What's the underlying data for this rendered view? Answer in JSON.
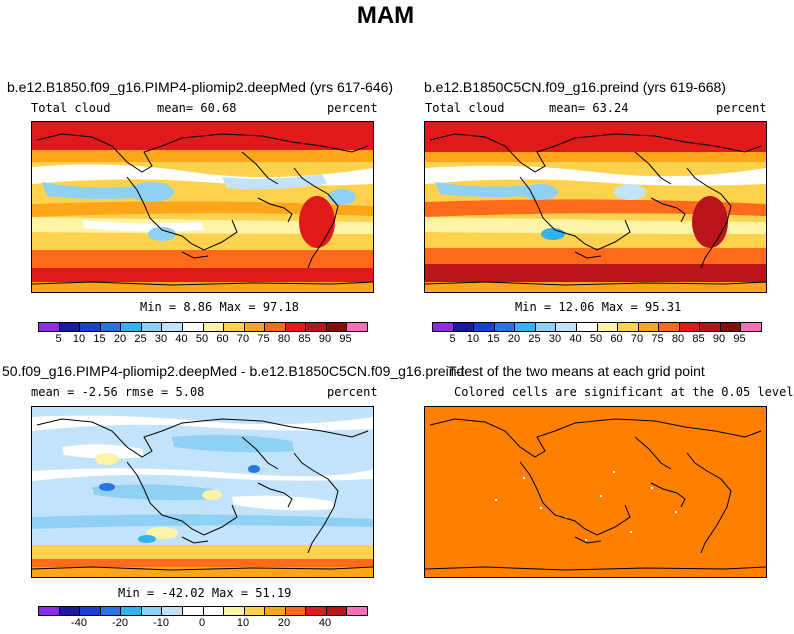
{
  "chart_data": [
    {
      "type": "heatmap",
      "suptitle": "MAM",
      "title": "b.e12.B1850.f09_g16.PIMP4-pliomip2.deepMed (yrs 617-646)",
      "left_label": "Total cloud",
      "center_label": "mean=  60.68",
      "right_label": "percent",
      "min_max": "Min =    8.86 Max =   97.18",
      "field_mean": 60.68,
      "field_min": 8.86,
      "field_max": 97.18,
      "units": "percent",
      "colorbar_levels": [
        5,
        10,
        15,
        20,
        25,
        30,
        40,
        50,
        60,
        70,
        75,
        80,
        85,
        90,
        95
      ],
      "colorbar_tick_labels": [
        "5",
        "10",
        "15",
        "20",
        "25",
        "30",
        "40",
        "50",
        "60",
        "70",
        "75",
        "80",
        "85",
        "90",
        "95"
      ]
    },
    {
      "type": "heatmap",
      "title": "b.e12.B1850C5CN.f09_g16.preind (yrs 619-668)",
      "left_label": "Total cloud",
      "center_label": "mean=  63.24",
      "right_label": "percent",
      "min_max": "Min =   12.06 Max =   95.31",
      "field_mean": 63.24,
      "field_min": 12.06,
      "field_max": 95.31,
      "units": "percent",
      "colorbar_levels": [
        5,
        10,
        15,
        20,
        25,
        30,
        40,
        50,
        60,
        70,
        75,
        80,
        85,
        90,
        95
      ],
      "colorbar_tick_labels": [
        "5",
        "10",
        "15",
        "20",
        "25",
        "30",
        "40",
        "50",
        "60",
        "70",
        "75",
        "80",
        "85",
        "90",
        "95"
      ]
    },
    {
      "type": "heatmap",
      "title": "50.f09_g16.PIMP4-pliomip2.deepMed - b.e12.B1850C5CN.f09_g16.preind",
      "left_label": "mean =   -2.56     rmse =    5.08",
      "right_label": "percent",
      "min_max": "Min =  -42.02 Max =   51.19",
      "field_mean": -2.56,
      "field_rmse": 5.08,
      "field_min": -42.02,
      "field_max": 51.19,
      "units": "percent",
      "colorbar_levels": [
        -50,
        -40,
        -30,
        -20,
        -15,
        -10,
        -5,
        0,
        5,
        10,
        15,
        20,
        30,
        40,
        50
      ],
      "colorbar_tick_labels": [
        "-40",
        "-20",
        "-10",
        "0",
        "10",
        "20",
        "40"
      ]
    },
    {
      "type": "heatmap",
      "title": "T-test of the two means at each grid point",
      "subtitle": "Colored cells are significant at the 0.05 level",
      "fill_color": "#ff7f00"
    }
  ],
  "colors": {
    "abs_scale": [
      "#8c2ee6",
      "#1a1aa6",
      "#1a3fd9",
      "#2a74e6",
      "#33b2f0",
      "#8fd1f5",
      "#c3e3fb",
      "#ffffff",
      "#fff3a6",
      "#ffd24d",
      "#ffa51a",
      "#ff6b1a",
      "#e0191a",
      "#b8141a",
      "#8a0a0a",
      "#ff6fb8"
    ],
    "diff_scale": [
      "#8c2ee6",
      "#1a1aa6",
      "#1a3fd9",
      "#2a74e6",
      "#33b2f0",
      "#8fd1f5",
      "#c3e3fb",
      "#ffffff",
      "#ffffff",
      "#fff3a6",
      "#ffd24d",
      "#ffa51a",
      "#ff6b1a",
      "#e0191a",
      "#b8141a",
      "#ff6fb8"
    ],
    "ttest_fill": "#ff7f00"
  }
}
